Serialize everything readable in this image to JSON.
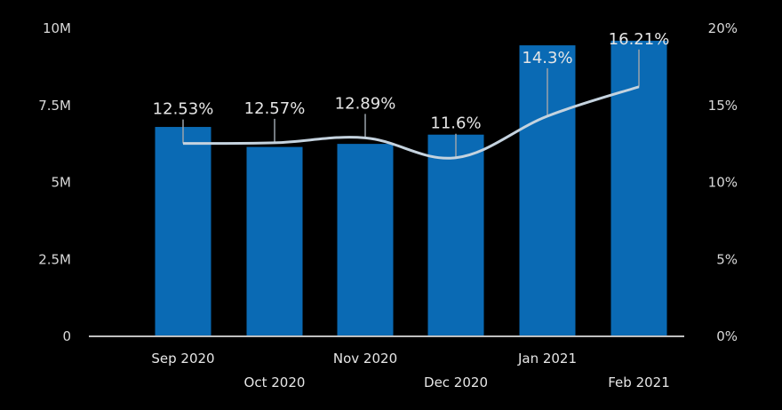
{
  "chart_data": {
    "type": "bar",
    "categories": [
      "Sep 2020",
      "Oct 2020",
      "Nov 2020",
      "Dec 2020",
      "Jan 2021",
      "Feb 2021"
    ],
    "series": [
      {
        "type": "bar",
        "axis": "left",
        "values": [
          6800000,
          6150000,
          6250000,
          6550000,
          9450000,
          9600000
        ]
      },
      {
        "type": "line",
        "axis": "right",
        "values": [
          12.53,
          12.57,
          12.89,
          11.6,
          14.3,
          16.21
        ],
        "labels": [
          "12.53%",
          "12.57%",
          "12.89%",
          "11.6%",
          "14.3%",
          "16.21%"
        ]
      }
    ],
    "y_left": {
      "range": [
        0,
        10000000
      ],
      "ticks": [
        "0",
        "2.5M",
        "5M",
        "7.5M",
        "10M"
      ]
    },
    "y_right": {
      "range": [
        0,
        20
      ],
      "ticks": [
        "0%",
        "5%",
        "10%",
        "15%",
        "20%"
      ]
    },
    "grid": false,
    "legend": "none",
    "colors": {
      "bar": "#0a6ab4",
      "line": "#c5d3df",
      "background": "#000000",
      "axis": "#bfbfbf",
      "text": "#e6e6e6"
    }
  }
}
